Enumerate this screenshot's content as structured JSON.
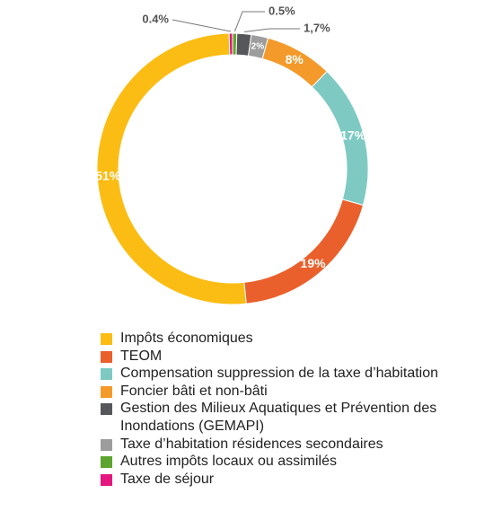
{
  "chart_data": {
    "type": "donut",
    "categories": [
      "Impôts économiques",
      "TEOM",
      "Compensation suppression de la taxe d’habitation",
      "Foncier bâti et non-bâti",
      "Gestion des Milieux Aquatiques et Prévention des Inondations (GEMAPI)",
      "Taxe d’habitation résidences secondaires",
      "Autres impôts locaux ou assimilés",
      "Taxe de séjour"
    ],
    "values": [
      51,
      19,
      17,
      8,
      1.7,
      2,
      0.5,
      0.4
    ],
    "value_labels": [
      "51%",
      "19%",
      "17%",
      "8%",
      "1,7%",
      "2%",
      "0.5%",
      "0.4%"
    ],
    "colors": [
      "#fbbd14",
      "#ea602c",
      "#7ecac3",
      "#f39a2b",
      "#55575b",
      "#9d9d9d",
      "#5ea52f",
      "#e5177e"
    ],
    "legend": "bottom"
  }
}
